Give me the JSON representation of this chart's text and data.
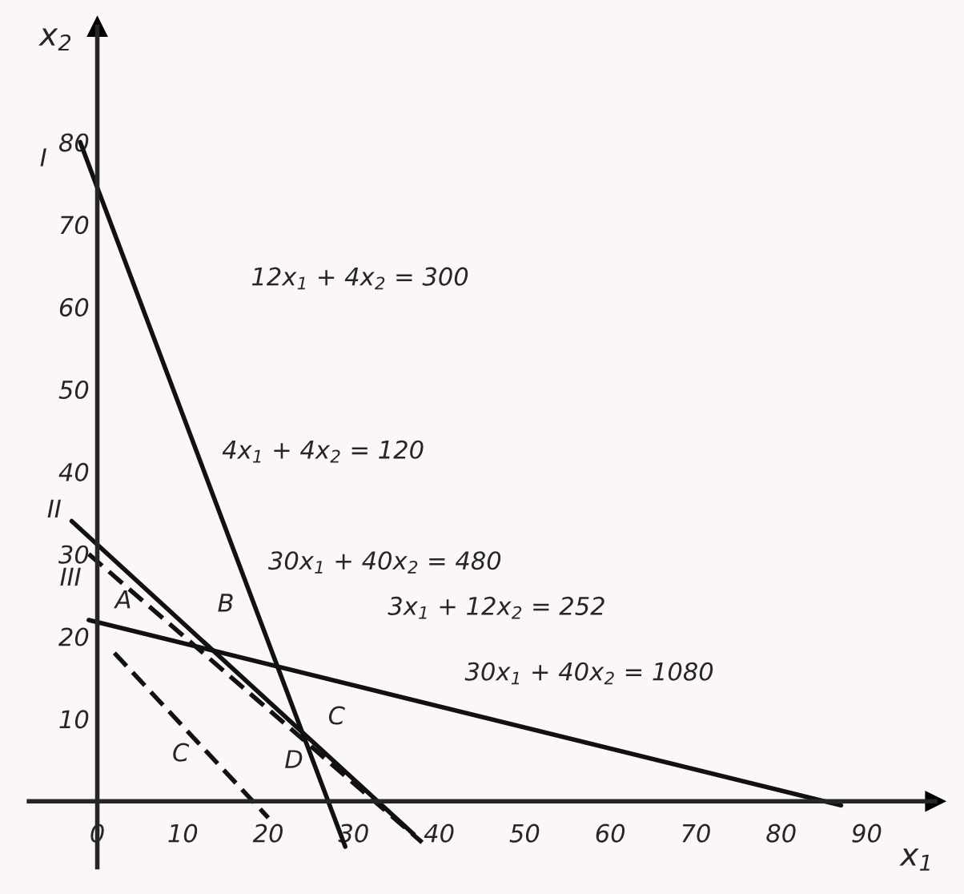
{
  "chart_data": {
    "type": "line",
    "xlabel": "x$_{1}$",
    "ylabel": "x$_{2}$",
    "xlim": [
      -8,
      98
    ],
    "ylim": [
      -8,
      94
    ],
    "xticks": [
      0,
      10,
      20,
      30,
      40,
      50,
      60,
      70,
      80,
      90
    ],
    "yticks": [
      10,
      20,
      30,
      40,
      50,
      60,
      70,
      80
    ],
    "grid": false,
    "legend": false,
    "marker": "none",
    "series": [
      {
        "color": "#111111",
        "line_style": "solid",
        "x": [
          -2,
          29
        ],
        "values": [
          80,
          -5.5
        ]
      },
      {
        "color": "#111111",
        "line_style": "solid",
        "x": [
          -3,
          37
        ],
        "values": [
          34,
          -4
        ]
      },
      {
        "color": "#111111",
        "line_style": "solid",
        "x": [
          -1,
          87
        ],
        "values": [
          22,
          -0.5
        ]
      },
      {
        "color": "#111111",
        "line_style": "dashed",
        "x": [
          2,
          20
        ],
        "values": [
          18,
          -2
        ]
      },
      {
        "color": "#111111",
        "line_style": "dashed",
        "x": [
          -1,
          38
        ],
        "values": [
          30,
          -5
        ]
      }
    ],
    "annotations": [
      "12x$_{1}$ + 4x$_{2}$ = 300",
      "4x$_{1}$ + 4x$_{2}$ = 120",
      "30x$_{1}$ + 40x$_{2}$ = 480",
      "3x$_{1}$ + 12x$_{2}$ = 252",
      "30x$_{1}$ + 40x$_{2}$ = 1080",
      "A",
      "B",
      "C",
      "D",
      "C",
      "I",
      "II",
      "III"
    ]
  }
}
